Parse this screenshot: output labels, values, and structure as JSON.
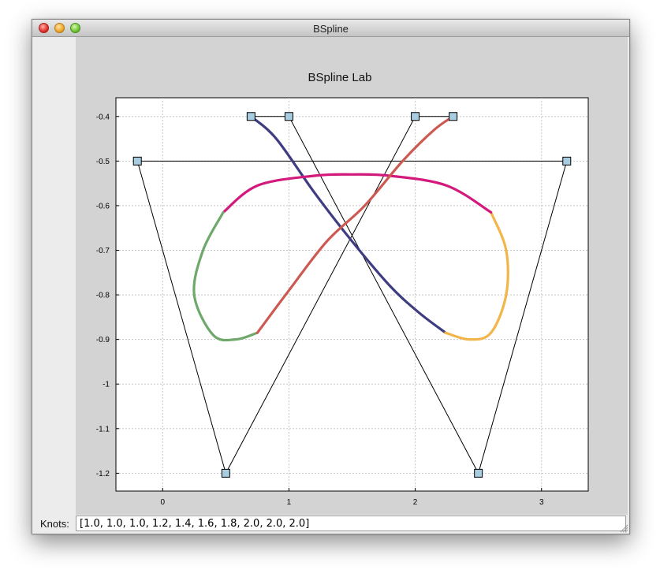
{
  "window": {
    "title": "BSpline"
  },
  "knots": {
    "label": "Knots:",
    "value": "[1.0, 1.0, 1.0, 1.2, 1.4, 1.6, 1.8, 2.0, 2.0, 2.0]"
  },
  "colors": {
    "segment_1": "#3f3d82",
    "segment_2": "#f2b54a",
    "segment_3": "#d4197c",
    "segment_4": "#6fa86b",
    "segment_5": "#cd5a52",
    "control_point_fill": "#a8cce0"
  },
  "chart_data": {
    "type": "line",
    "title": "BSpline Lab",
    "xlim": [
      -0.37,
      3.37
    ],
    "ylim": [
      -1.24,
      -0.358
    ],
    "x_ticks": [
      0,
      1,
      2,
      3
    ],
    "y_ticks": [
      -0.4,
      -0.5,
      -0.6,
      -0.7,
      -0.8,
      -0.9,
      -1,
      -1.1,
      -1.2
    ],
    "x_tick_labels": [
      "0",
      "1",
      "2",
      "3"
    ],
    "y_tick_labels": [
      "-0.4",
      "-0.5",
      "-0.6",
      "-0.7",
      "-0.8",
      "-0.9",
      "-1",
      "-1.1",
      "-1.2"
    ],
    "grid": true,
    "control_polygon": [
      [
        0.7,
        -0.4
      ],
      [
        1.0,
        -0.4
      ],
      [
        2.5,
        -1.2
      ],
      [
        3.2,
        -0.5
      ],
      [
        -0.2,
        -0.5
      ],
      [
        0.5,
        -1.2
      ],
      [
        2.0,
        -0.4
      ],
      [
        2.3,
        -0.4
      ]
    ],
    "curve_segments": [
      {
        "color": "#3f3d82",
        "points": [
          [
            0.7,
            -0.4
          ],
          [
            0.9,
            -0.45
          ],
          [
            1.2,
            -0.57
          ],
          [
            1.5,
            -0.68
          ],
          [
            1.8,
            -0.78
          ],
          [
            2.03,
            -0.84
          ],
          [
            2.24,
            -0.885
          ]
        ]
      },
      {
        "color": "#f2b54a",
        "points": [
          [
            2.24,
            -0.885
          ],
          [
            2.43,
            -0.9
          ],
          [
            2.6,
            -0.885
          ],
          [
            2.72,
            -0.8
          ],
          [
            2.72,
            -0.7
          ],
          [
            2.6,
            -0.615
          ]
        ]
      },
      {
        "color": "#d4197c",
        "points": [
          [
            2.6,
            -0.615
          ],
          [
            2.25,
            -0.555
          ],
          [
            1.8,
            -0.533
          ],
          [
            1.5,
            -0.53
          ],
          [
            1.2,
            -0.533
          ],
          [
            0.75,
            -0.555
          ],
          [
            0.48,
            -0.615
          ]
        ]
      },
      {
        "color": "#6fa86b",
        "points": [
          [
            0.48,
            -0.615
          ],
          [
            0.32,
            -0.7
          ],
          [
            0.25,
            -0.8
          ],
          [
            0.4,
            -0.89
          ],
          [
            0.58,
            -0.9
          ],
          [
            0.75,
            -0.885
          ]
        ]
      },
      {
        "color": "#cd5a52",
        "points": [
          [
            0.75,
            -0.885
          ],
          [
            1.0,
            -0.79
          ],
          [
            1.3,
            -0.68
          ],
          [
            1.6,
            -0.6
          ],
          [
            1.9,
            -0.5
          ],
          [
            2.15,
            -0.43
          ],
          [
            2.3,
            -0.4
          ]
        ]
      }
    ]
  }
}
